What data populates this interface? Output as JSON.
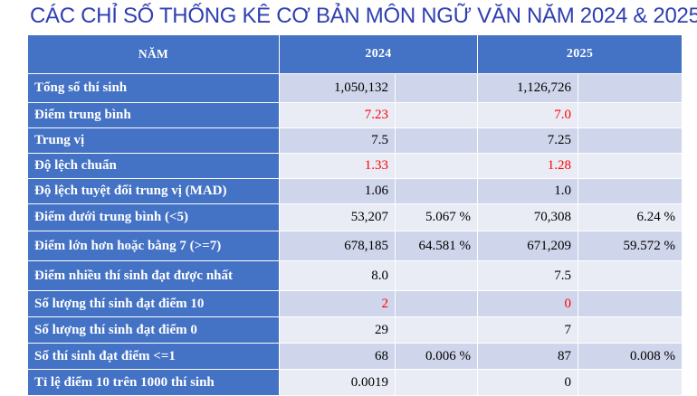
{
  "title": "CÁC CHỈ SỐ THỐNG KÊ CƠ BẢN MÔN NGỮ VĂN NĂM 2024 & 2025",
  "header": {
    "col_label": "NĂM",
    "year_a": "2024",
    "year_b": "2025"
  },
  "colors": {
    "header_bg": "#4472c4",
    "row_odd": "#cfd5ea",
    "row_even": "#e9ebf5",
    "highlight": "#ff0000",
    "title": "#2f3fb0"
  },
  "rows": [
    {
      "label": "Tổng số thí sinh",
      "a1": "1,050,132",
      "a2": "",
      "b1": "1,126,726",
      "b2": ""
    },
    {
      "label": "Điểm trung bình",
      "a1": "7.23",
      "a2": "",
      "b1": "7.0",
      "b2": ""
    },
    {
      "label": "Trung vị",
      "a1": "7.5",
      "a2": "",
      "b1": "7.25",
      "b2": ""
    },
    {
      "label": "Độ lệch chuẩn",
      "a1": "1.33",
      "a2": "",
      "b1": "1.28",
      "b2": ""
    },
    {
      "label": "Độ lệch tuyệt đối trung vị (MAD)",
      "a1": "1.06",
      "a2": "",
      "b1": "1.0",
      "b2": ""
    },
    {
      "label": "Điểm dưới trung bình (<5)",
      "a1": "53,207",
      "a2": "5.067 %",
      "b1": "70,308",
      "b2": "6.24 %"
    },
    {
      "label": "Điểm lớn hơn hoặc bằng 7 (>=7)",
      "a1": "678,185",
      "a2": "64.581 %",
      "b1": "671,209",
      "b2": "59.572 %"
    },
    {
      "label": "Điểm nhiều thí sinh đạt được nhất",
      "a1": "8.0",
      "a2": "",
      "b1": "7.5",
      "b2": ""
    },
    {
      "label": "Số lượng thí sinh đạt điểm 10",
      "a1": "2",
      "a2": "",
      "b1": "0",
      "b2": ""
    },
    {
      "label": "Số lượng thí sinh đạt điểm 0",
      "a1": "29",
      "a2": "",
      "b1": "7",
      "b2": ""
    },
    {
      "label": "Số thí sinh đạt điểm <=1",
      "a1": "68",
      "a2": "0.006 %",
      "b1": "87",
      "b2": "0.008 %"
    },
    {
      "label": "Tỉ lệ điểm 10 trên 1000 thí sinh",
      "a1": "0.0019",
      "a2": "",
      "b1": "0",
      "b2": ""
    }
  ]
}
